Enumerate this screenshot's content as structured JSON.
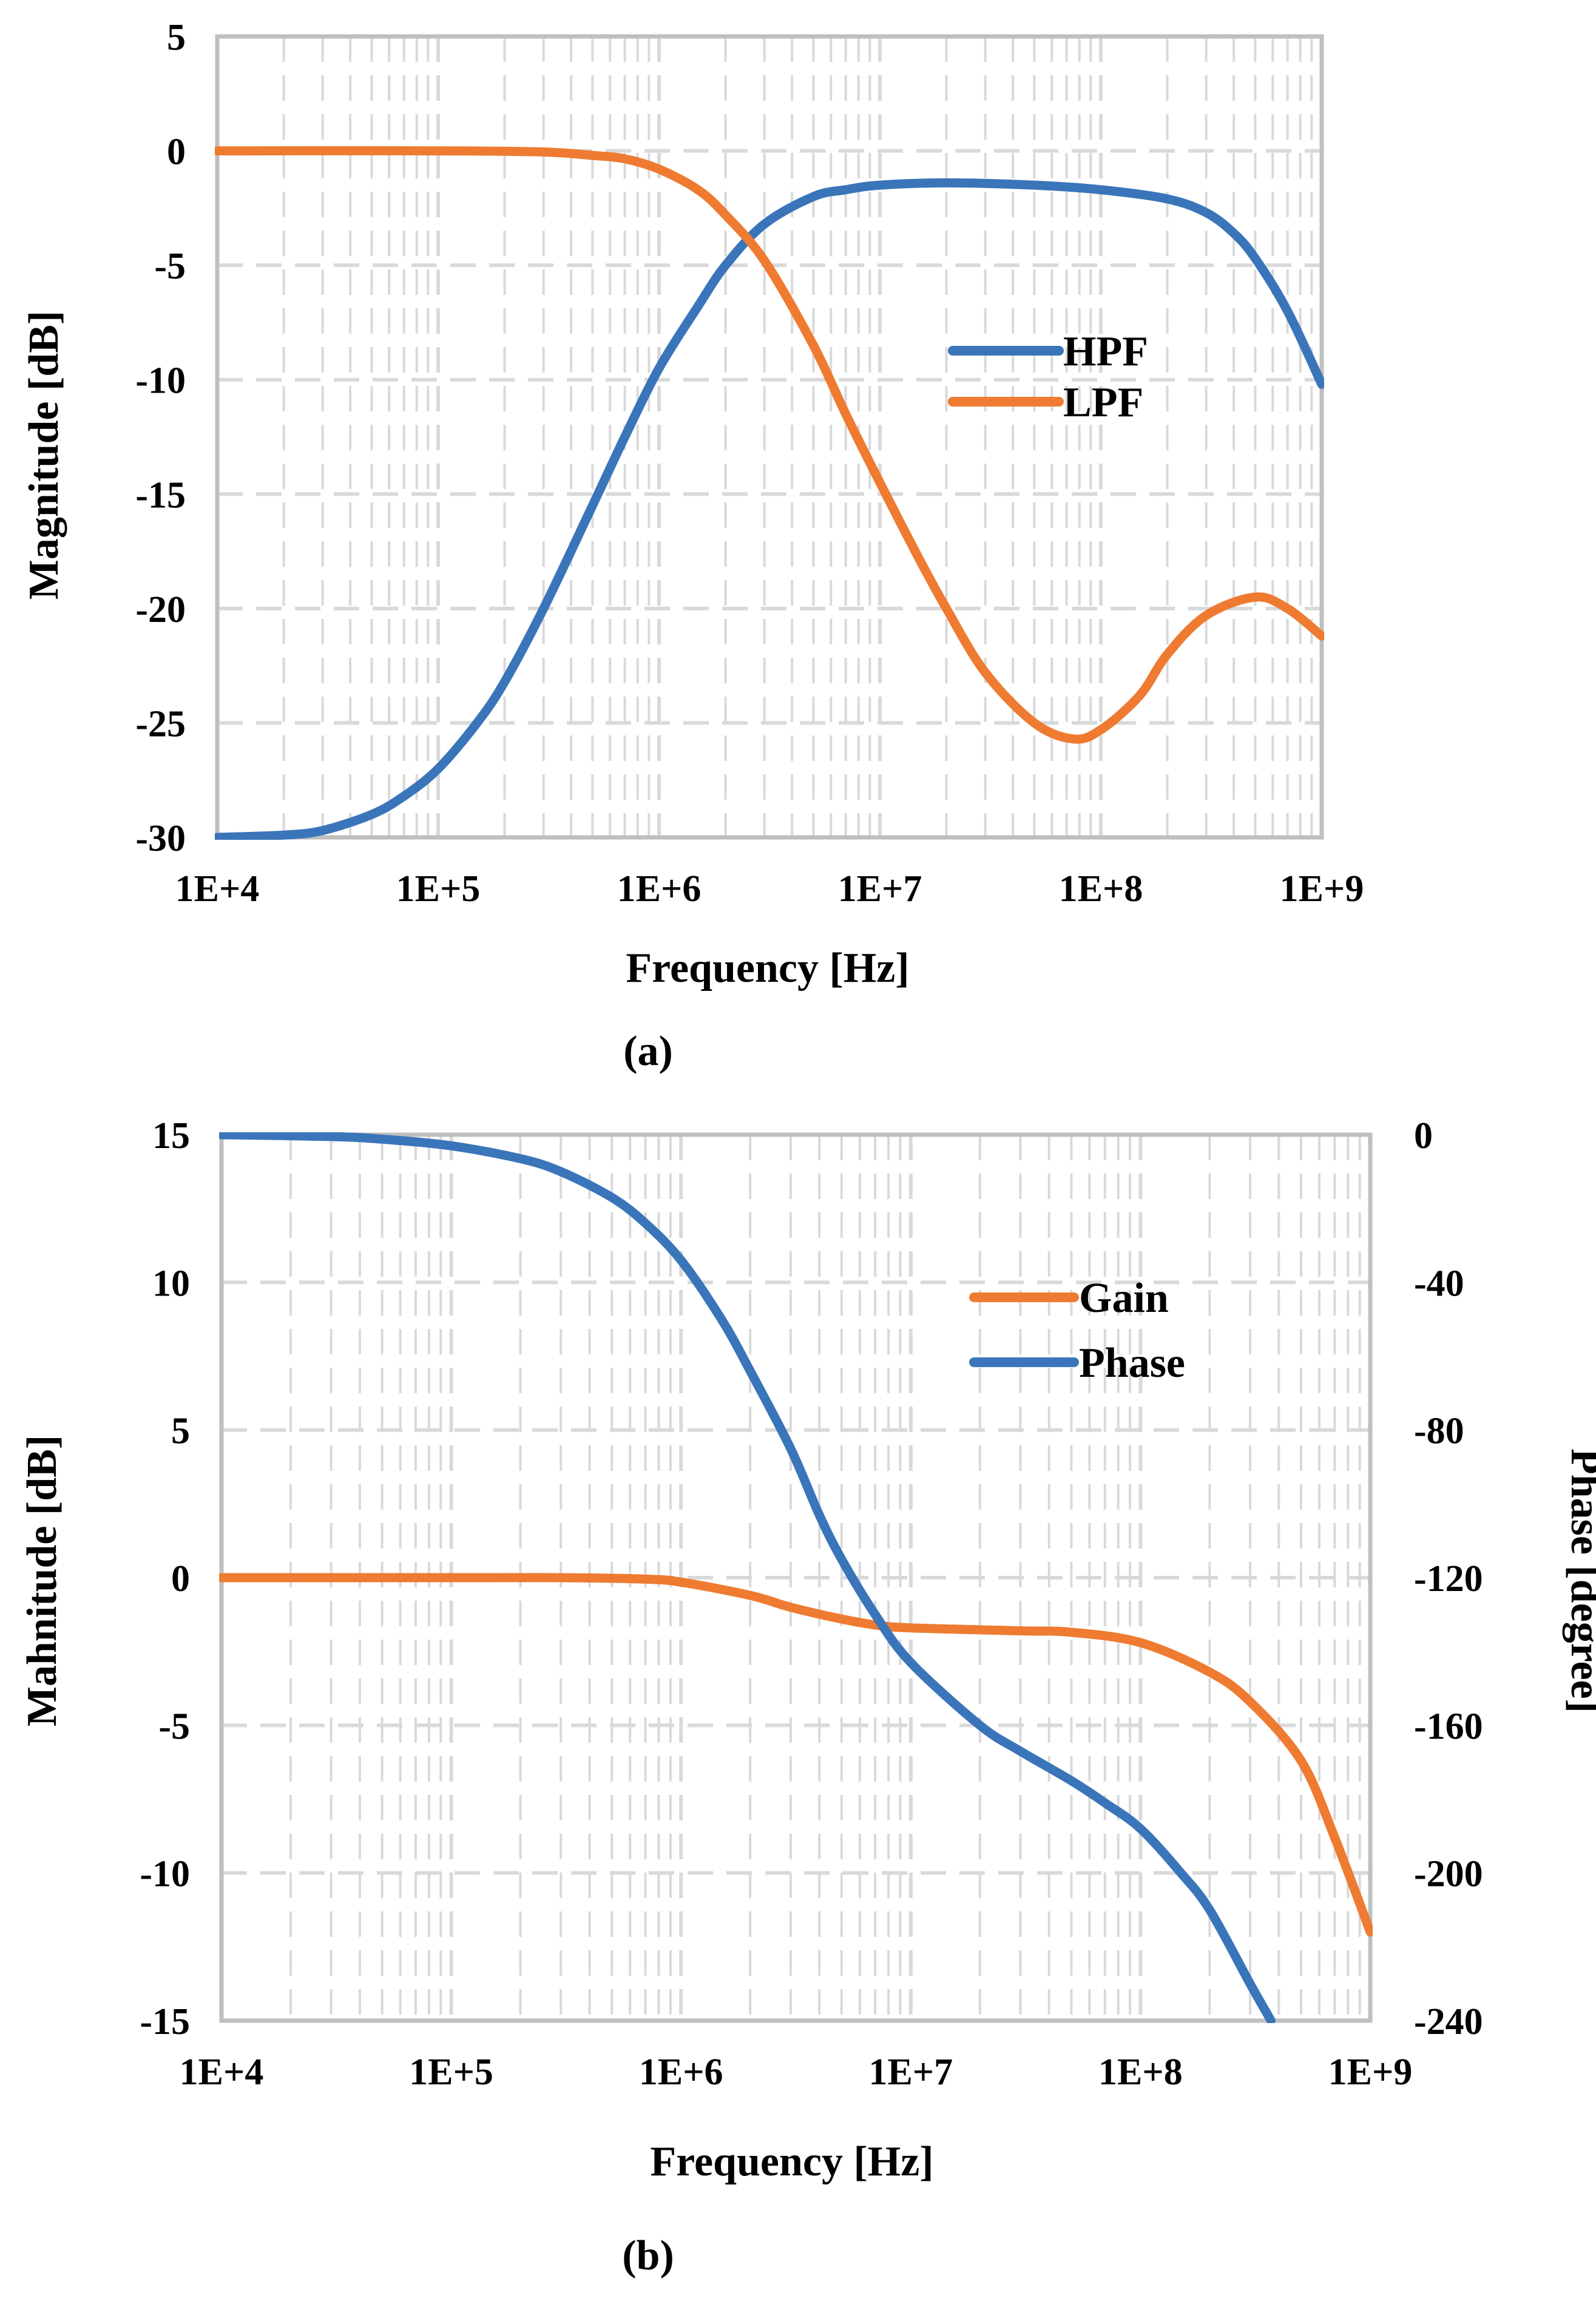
{
  "colors": {
    "blue": "#3A75BA",
    "orange": "#EE7B31",
    "grid": "#D9D9D9",
    "frame": "#BFBFBF"
  },
  "chart_data": [
    {
      "type": "line",
      "caption": "(a)",
      "xscale": "log",
      "xlim": [
        10000,
        1000000000
      ],
      "x_ticks": [
        10000,
        100000,
        1000000,
        10000000,
        100000000,
        1000000000
      ],
      "x_tick_labels": [
        "1E+4",
        "1E+5",
        "1E+6",
        "1E+7",
        "1E+8",
        "1E+9"
      ],
      "xlabel": "Frequency [Hz]",
      "ylabel": "Magnitude [dB]",
      "ylim": [
        -30,
        5
      ],
      "y_ticks": [
        -30,
        -25,
        -20,
        -15,
        -10,
        -5,
        0,
        5
      ],
      "y_tick_labels": [
        "-30",
        "-25",
        "-20",
        "-15",
        "-10",
        "-5",
        "0",
        "5"
      ],
      "grid": true,
      "legend_position": "center-right",
      "series": [
        {
          "name": "HPF",
          "color": "#3A75BA",
          "axis": "left",
          "points": [
            [
              10000,
              -30
            ],
            [
              20000,
              -29.9
            ],
            [
              30000,
              -29.7
            ],
            [
              50000,
              -29
            ],
            [
              70000,
              -28.2
            ],
            [
              100000,
              -27
            ],
            [
              150000,
              -25
            ],
            [
              200000,
              -23.2
            ],
            [
              300000,
              -20
            ],
            [
              500000,
              -15.5
            ],
            [
              700000,
              -12.5
            ],
            [
              1000000,
              -9.5
            ],
            [
              1500000,
              -6.8
            ],
            [
              2000000,
              -5
            ],
            [
              3000000,
              -3.2
            ],
            [
              5000000,
              -2
            ],
            [
              7000000,
              -1.7
            ],
            [
              10000000,
              -1.5
            ],
            [
              20000000,
              -1.4
            ],
            [
              50000000,
              -1.5
            ],
            [
              100000000,
              -1.7
            ],
            [
              200000000,
              -2.1
            ],
            [
              300000000,
              -2.7
            ],
            [
              400000000,
              -3.6
            ],
            [
              500000000,
              -4.7
            ],
            [
              700000000,
              -7
            ],
            [
              1000000000,
              -10.2
            ]
          ]
        },
        {
          "name": "LPF",
          "color": "#EE7B31",
          "axis": "left",
          "points": [
            [
              10000,
              0
            ],
            [
              100000,
              0
            ],
            [
              300000,
              -0.05
            ],
            [
              500000,
              -0.2
            ],
            [
              700000,
              -0.35
            ],
            [
              1000000,
              -0.8
            ],
            [
              1500000,
              -1.7
            ],
            [
              2000000,
              -2.8
            ],
            [
              3000000,
              -4.8
            ],
            [
              5000000,
              -8.5
            ],
            [
              7000000,
              -11.5
            ],
            [
              10000000,
              -14.5
            ],
            [
              15000000,
              -17.8
            ],
            [
              20000000,
              -20
            ],
            [
              30000000,
              -22.8
            ],
            [
              50000000,
              -25
            ],
            [
              75000000,
              -25.7
            ],
            [
              100000000,
              -25.3
            ],
            [
              150000000,
              -23.8
            ],
            [
              200000000,
              -22
            ],
            [
              300000000,
              -20.3
            ],
            [
              500000000,
              -19.5
            ],
            [
              700000000,
              -20
            ],
            [
              1000000000,
              -21.2
            ]
          ]
        }
      ]
    },
    {
      "type": "line",
      "caption": "(b)",
      "xscale": "log",
      "xlim": [
        10000,
        1000000000
      ],
      "x_ticks": [
        10000,
        100000,
        1000000,
        10000000,
        100000000,
        1000000000
      ],
      "x_tick_labels": [
        "1E+4",
        "1E+5",
        "1E+6",
        "1E+7",
        "1E+8",
        "1E+9"
      ],
      "xlabel": "Frequency [Hz]",
      "ylabel": "Mahnitude [dB]",
      "ylim": [
        -15,
        15
      ],
      "y_ticks": [
        -15,
        -10,
        -5,
        0,
        5,
        10,
        15
      ],
      "y_tick_labels": [
        "-15",
        "-10",
        "-5",
        "0",
        "5",
        "10",
        "15"
      ],
      "y2label": "Phase [degree]",
      "y2lim": [
        -240,
        0
      ],
      "y2_ticks": [
        -240,
        -200,
        -160,
        -120,
        -80,
        -40,
        0
      ],
      "y2_tick_labels": [
        "-240",
        "-200",
        "-160",
        "-120",
        "-80",
        "-40",
        "0"
      ],
      "grid": true,
      "legend_position": "top-right",
      "series": [
        {
          "name": "Gain",
          "color": "#EE7B31",
          "axis": "left",
          "points": [
            [
              10000,
              0
            ],
            [
              100000,
              0
            ],
            [
              300000,
              0
            ],
            [
              700000,
              -0.05
            ],
            [
              1000000,
              -0.15
            ],
            [
              2000000,
              -0.6
            ],
            [
              3000000,
              -1
            ],
            [
              5000000,
              -1.4
            ],
            [
              7000000,
              -1.6
            ],
            [
              10000000,
              -1.7
            ],
            [
              30000000,
              -1.8
            ],
            [
              50000000,
              -1.85
            ],
            [
              100000000,
              -2.2
            ],
            [
              200000000,
              -3.2
            ],
            [
              300000000,
              -4.2
            ],
            [
              500000000,
              -6.2
            ],
            [
              700000000,
              -8.8
            ],
            [
              1000000000,
              -12
            ]
          ]
        },
        {
          "name": "Phase",
          "color": "#3A75BA",
          "axis": "right",
          "points": [
            [
              10000,
              0
            ],
            [
              30000,
              -0.5
            ],
            [
              50000,
              -1.2
            ],
            [
              100000,
              -3
            ],
            [
              200000,
              -6.5
            ],
            [
              300000,
              -10
            ],
            [
              500000,
              -17
            ],
            [
              700000,
              -24
            ],
            [
              1000000,
              -34
            ],
            [
              1500000,
              -50
            ],
            [
              2000000,
              -64
            ],
            [
              3000000,
              -85
            ],
            [
              4000000,
              -103
            ],
            [
              5000000,
              -115
            ],
            [
              7000000,
              -130
            ],
            [
              10000000,
              -143
            ],
            [
              20000000,
              -160
            ],
            [
              30000000,
              -167
            ],
            [
              50000000,
              -175
            ],
            [
              70000000,
              -181
            ],
            [
              100000000,
              -188
            ],
            [
              150000000,
              -200
            ],
            [
              200000000,
              -210
            ],
            [
              300000000,
              -230
            ],
            [
              370000000,
              -240
            ]
          ]
        }
      ]
    }
  ]
}
